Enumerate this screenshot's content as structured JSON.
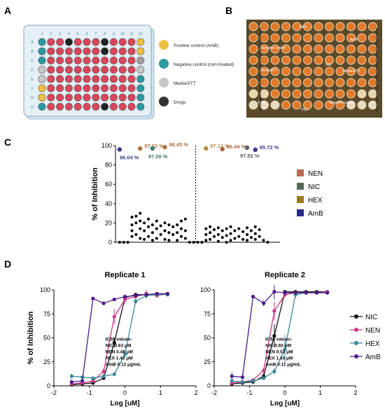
{
  "panels": {
    "A": {
      "label": "A",
      "plate": {
        "row_labels": [
          "A",
          "B",
          "C",
          "D",
          "E",
          "F",
          "G",
          "H"
        ],
        "col_labels": [
          "1",
          "2",
          "3",
          "4",
          "5",
          "6",
          "7",
          "8",
          "9",
          "10",
          "11",
          "12"
        ],
        "black_wells": [
          "A4",
          "A8",
          "B8",
          "H8"
        ],
        "col1": [
          "teal",
          "teal",
          "teal",
          "lightgray",
          "lightgray",
          "yellow",
          "yellow",
          "teal"
        ],
        "col12": [
          "yellow",
          "yellow",
          "gray",
          "lightgray",
          "teal",
          "teal",
          "teal",
          "teal"
        ]
      },
      "legend": [
        {
          "label": "Positive control (AmB)",
          "color": "#f0c040"
        },
        {
          "label": "Negative control (non-treated)",
          "color": "#2a9aa0"
        },
        {
          "label": "Media/XTT",
          "color": "#c8c8c8"
        },
        {
          "label": "Drugs",
          "color": "#333333"
        }
      ]
    },
    "B": {
      "label": "B",
      "annotations": [
        "NEN",
        "AmB",
        "Negative control",
        "NIC",
        "Media/XTT",
        "Media/XTT",
        "AmB",
        "HEX",
        "Negative control"
      ]
    },
    "C": {
      "label": "C",
      "ylabel": "% of Inhibition",
      "ylim": [
        0,
        100
      ],
      "yticks": [
        0,
        20,
        40,
        60,
        80,
        100
      ],
      "highlights": [
        {
          "text": "96.04 %",
          "color": "#3a3a8c"
        },
        {
          "text": "97.02 %",
          "color": "#b07040"
        },
        {
          "text": "97.08 %",
          "color": "#3a7a6a"
        },
        {
          "text": "98.45 %",
          "color": "#b07040"
        },
        {
          "text": "97.13 %",
          "color": "#b0903a"
        },
        {
          "text": "96.44 %",
          "color": "#b06040"
        },
        {
          "text": "97.82 %",
          "color": "#556060"
        },
        {
          "text": "95.72 %",
          "color": "#3a3a8c"
        }
      ],
      "legend": [
        {
          "label": "NEN",
          "color": "#b86a55"
        },
        {
          "label": "NIC",
          "color": "#556a5a"
        },
        {
          "label": "HEX",
          "color": "#9a7a20"
        },
        {
          "label": "AmB",
          "color": "#2a2a88"
        }
      ]
    },
    "D": {
      "label": "D",
      "legend": [
        {
          "label": "NIC",
          "color": "#111111"
        },
        {
          "label": "NEN",
          "color": "#cc3a8a"
        },
        {
          "label": "HEX",
          "color": "#3a8a9a"
        },
        {
          "label": "AmB",
          "color": "#4a1a8a"
        }
      ]
    }
  },
  "chart_data": [
    {
      "type": "scatter",
      "panel": "C",
      "ylabel": "% of Inhibition",
      "ylim": [
        0,
        100
      ],
      "xlim": [
        0,
        40
      ],
      "highlighted_points": [
        {
          "x": 1,
          "y": 96.04,
          "series": "AmB"
        },
        {
          "x": 6,
          "y": 97.02,
          "series": "NEN"
        },
        {
          "x": 9,
          "y": 97.08,
          "series": "NIC"
        },
        {
          "x": 12,
          "y": 98.45,
          "series": "NEN"
        },
        {
          "x": 22,
          "y": 97.13,
          "series": "HEX"
        },
        {
          "x": 26,
          "y": 96.44,
          "series": "NEN"
        },
        {
          "x": 32,
          "y": 97.82,
          "series": "NIC"
        },
        {
          "x": 34,
          "y": 95.72,
          "series": "AmB"
        }
      ],
      "dots": [
        [
          1,
          0
        ],
        [
          2,
          0
        ],
        [
          3,
          0
        ],
        [
          4,
          26
        ],
        [
          4,
          18
        ],
        [
          4,
          12
        ],
        [
          4,
          6
        ],
        [
          5,
          27
        ],
        [
          5,
          20
        ],
        [
          5,
          8
        ],
        [
          6,
          30
        ],
        [
          6,
          22
        ],
        [
          6,
          14
        ],
        [
          6,
          4
        ],
        [
          7,
          20
        ],
        [
          7,
          12
        ],
        [
          7,
          3
        ],
        [
          8,
          24
        ],
        [
          8,
          16
        ],
        [
          8,
          6
        ],
        [
          9,
          18
        ],
        [
          9,
          10
        ],
        [
          9,
          2
        ],
        [
          10,
          22
        ],
        [
          10,
          14
        ],
        [
          10,
          4
        ],
        [
          11,
          17
        ],
        [
          11,
          8
        ],
        [
          12,
          20
        ],
        [
          12,
          12
        ],
        [
          12,
          3
        ],
        [
          13,
          18
        ],
        [
          13,
          10
        ],
        [
          13,
          2
        ],
        [
          14,
          16
        ],
        [
          14,
          8
        ],
        [
          15,
          18
        ],
        [
          15,
          10
        ],
        [
          15,
          2
        ],
        [
          16,
          22
        ],
        [
          16,
          14
        ],
        [
          16,
          6
        ],
        [
          17,
          24
        ],
        [
          17,
          12
        ],
        [
          17,
          4
        ],
        [
          18,
          0
        ],
        [
          19,
          0
        ],
        [
          20,
          0
        ],
        [
          21,
          0
        ],
        [
          22,
          14
        ],
        [
          22,
          8
        ],
        [
          22,
          2
        ],
        [
          23,
          16
        ],
        [
          23,
          10
        ],
        [
          23,
          3
        ],
        [
          24,
          13
        ],
        [
          24,
          6
        ],
        [
          25,
          15
        ],
        [
          25,
          8
        ],
        [
          25,
          1
        ],
        [
          26,
          12
        ],
        [
          26,
          5
        ],
        [
          27,
          14
        ],
        [
          27,
          7
        ],
        [
          27,
          0
        ],
        [
          28,
          16
        ],
        [
          28,
          9
        ],
        [
          28,
          2
        ],
        [
          29,
          12
        ],
        [
          29,
          4
        ],
        [
          30,
          14
        ],
        [
          30,
          6
        ],
        [
          31,
          11
        ],
        [
          31,
          3
        ],
        [
          32,
          15
        ],
        [
          32,
          8
        ],
        [
          32,
          2
        ],
        [
          33,
          12
        ],
        [
          33,
          5
        ],
        [
          34,
          16
        ],
        [
          34,
          9
        ],
        [
          34,
          3
        ],
        [
          35,
          13
        ],
        [
          35,
          6
        ],
        [
          36,
          2
        ],
        [
          37,
          0
        ]
      ],
      "divider_x": 19.5
    },
    {
      "type": "line",
      "panel": "D",
      "title": "Replicate 1",
      "xlabel": "Log [uM]",
      "ylabel": "% of Inhibition",
      "xlim": [
        -2,
        2
      ],
      "ylim": [
        0,
        100
      ],
      "xticks": [
        -2,
        -1,
        0,
        1,
        2
      ],
      "yticks": [
        0,
        25,
        50,
        75,
        100
      ],
      "annotation": [
        "IC50 values:",
        "NIC 0.63 μM",
        "NEN 0.48 μM",
        "HEX 1.43 μM",
        "AmB 0.12 μg/mL"
      ],
      "series": [
        {
          "name": "NIC",
          "x": [
            -1.5,
            -1.2,
            -0.9,
            -0.6,
            -0.3,
            0,
            0.3,
            0.6,
            0.9,
            1.2
          ],
          "y": [
            1,
            2,
            3,
            8,
            45,
            92,
            95,
            95,
            96,
            96
          ],
          "err": [
            0,
            0,
            0,
            2,
            5,
            3,
            2,
            4,
            2,
            1
          ]
        },
        {
          "name": "NEN",
          "x": [
            -1.5,
            -1.2,
            -0.9,
            -0.6,
            -0.3,
            0,
            0.3,
            0.6,
            0.9,
            1.2
          ],
          "y": [
            2,
            3,
            5,
            15,
            72,
            90,
            93,
            96,
            94,
            96
          ],
          "err": [
            0,
            0,
            1,
            3,
            8,
            5,
            3,
            4,
            2,
            1
          ]
        },
        {
          "name": "HEX",
          "x": [
            -1.5,
            -1.2,
            -0.9,
            -0.6,
            -0.3,
            0,
            0.3,
            0.6,
            0.9,
            1.2
          ],
          "y": [
            10,
            9,
            8,
            10,
            12,
            33,
            88,
            94,
            95,
            95
          ],
          "err": [
            3,
            2,
            1,
            2,
            2,
            3,
            3,
            2,
            1,
            1
          ]
        },
        {
          "name": "AmB",
          "x": [
            -1.5,
            -1.2,
            -0.9,
            -0.6,
            -0.3,
            0,
            0.3,
            0.6,
            0.9,
            1.2
          ],
          "y": [
            4,
            5,
            91,
            86,
            90,
            93,
            94,
            95,
            96,
            96
          ],
          "err": [
            2,
            1,
            1,
            2,
            1,
            1,
            1,
            1,
            1,
            1
          ]
        }
      ]
    },
    {
      "type": "line",
      "panel": "D",
      "title": "Replicate 2",
      "xlabel": "Log [uM]",
      "xlim": [
        -2,
        2
      ],
      "ylim": [
        0,
        100
      ],
      "xticks": [
        -2,
        -1,
        0,
        1,
        2
      ],
      "yticks": [
        0,
        25,
        50,
        75,
        100
      ],
      "annotation": [
        "IC50 values:",
        "NIC 0.60 μM",
        "NEN 0.53 μM",
        "HEX 1.34 μM",
        "AmB 0.11 μg/mL"
      ],
      "series": [
        {
          "name": "NIC",
          "x": [
            -1.5,
            -1.2,
            -0.9,
            -0.6,
            -0.3,
            0,
            0.3,
            0.6,
            0.9,
            1.2
          ],
          "y": [
            2,
            3,
            4,
            10,
            52,
            98,
            98,
            98,
            98,
            98
          ],
          "err": [
            0,
            0,
            1,
            3,
            12,
            2,
            1,
            1,
            1,
            1
          ]
        },
        {
          "name": "NEN",
          "x": [
            -1.5,
            -1.2,
            -0.9,
            -0.6,
            -0.3,
            0,
            0.3,
            0.6,
            0.9,
            1.2
          ],
          "y": [
            3,
            4,
            6,
            16,
            78,
            95,
            97,
            97,
            97,
            98
          ],
          "err": [
            1,
            1,
            1,
            3,
            10,
            3,
            2,
            1,
            1,
            1
          ]
        },
        {
          "name": "HEX",
          "x": [
            -1.5,
            -1.2,
            -0.9,
            -0.6,
            -0.3,
            0,
            0.3,
            0.6,
            0.9,
            1.2
          ],
          "y": [
            5,
            4,
            5,
            8,
            15,
            38,
            95,
            97,
            97,
            97
          ],
          "err": [
            2,
            1,
            1,
            2,
            3,
            15,
            3,
            2,
            1,
            1
          ]
        },
        {
          "name": "AmB",
          "x": [
            -1.5,
            -1.2,
            -0.9,
            -0.6,
            -0.3,
            0,
            0.3,
            0.6,
            0.9,
            1.2
          ],
          "y": [
            10,
            9,
            93,
            86,
            98,
            97,
            97,
            97,
            97,
            97
          ],
          "err": [
            4,
            3,
            1,
            3,
            8,
            2,
            1,
            1,
            1,
            1
          ]
        }
      ]
    }
  ]
}
